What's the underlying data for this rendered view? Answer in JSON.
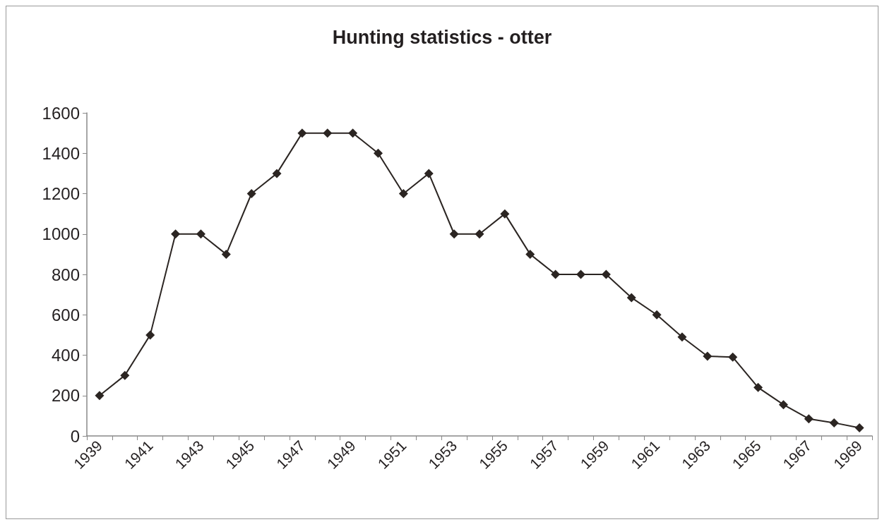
{
  "chart_data": {
    "type": "line",
    "title": "Hunting statistics - otter",
    "categories": [
      "1939",
      null,
      "1941",
      null,
      "1943",
      null,
      "1945",
      null,
      "1947",
      null,
      "1949",
      null,
      "1951",
      null,
      "1953",
      null,
      "1955",
      null,
      "1957",
      null,
      "1959",
      null,
      "1961",
      null,
      "1963",
      null,
      "1965",
      null,
      "1967",
      null,
      "1969"
    ],
    "series": [
      {
        "color": "#2b2522",
        "values": [
          200,
          300,
          500,
          1000,
          1000,
          900,
          1200,
          1300,
          1500,
          1500,
          1500,
          1400,
          1200,
          1300,
          1000,
          1000,
          1100,
          900,
          800,
          800,
          800,
          685,
          600,
          490,
          395,
          390,
          240,
          155,
          85,
          65,
          40
        ]
      }
    ],
    "ylim": [
      0,
      1600
    ],
    "yticks": [
      0,
      200,
      400,
      600,
      800,
      1000,
      1200,
      1400,
      1600
    ],
    "grid": false,
    "marker": "diamond",
    "line_style": "solid"
  }
}
